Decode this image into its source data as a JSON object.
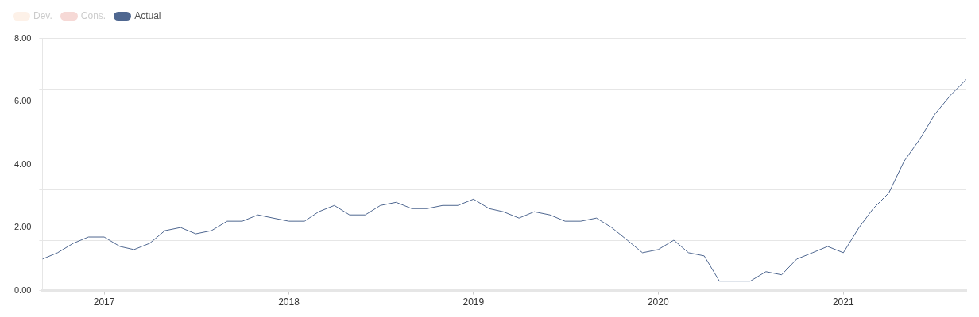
{
  "chart_data": {
    "type": "line",
    "x": [
      "2016-09",
      "2016-10",
      "2016-11",
      "2016-12",
      "2017-01",
      "2017-02",
      "2017-03",
      "2017-04",
      "2017-05",
      "2017-06",
      "2017-07",
      "2017-08",
      "2017-09",
      "2017-10",
      "2017-11",
      "2017-12",
      "2018-01",
      "2018-02",
      "2018-03",
      "2018-04",
      "2018-05",
      "2018-06",
      "2018-07",
      "2018-08",
      "2018-09",
      "2018-10",
      "2018-11",
      "2018-12",
      "2019-01",
      "2019-02",
      "2019-03",
      "2019-04",
      "2019-05",
      "2019-06",
      "2019-07",
      "2019-08",
      "2019-09",
      "2019-10",
      "2019-11",
      "2019-12",
      "2020-01",
      "2020-02",
      "2020-03",
      "2020-04",
      "2020-05",
      "2020-06",
      "2020-07",
      "2020-08",
      "2020-09",
      "2020-10",
      "2020-11",
      "2020-12",
      "2021-01",
      "2021-02",
      "2021-03",
      "2021-04",
      "2021-05",
      "2021-06",
      "2021-07",
      "2021-08",
      "2021-09"
    ],
    "series": [
      {
        "name": "Dev.",
        "color": "#fdf1e8",
        "values": [
          null,
          null,
          null,
          null,
          null,
          null,
          null,
          null,
          null,
          null,
          null,
          null,
          null,
          null,
          null,
          null,
          null,
          null,
          null,
          null,
          null,
          null,
          null,
          null,
          null,
          null,
          null,
          null,
          null,
          null,
          null,
          null,
          null,
          null,
          null,
          null,
          null,
          null,
          null,
          null,
          null,
          null,
          null,
          null,
          null,
          null,
          null,
          null,
          null,
          null,
          null,
          null,
          null,
          null,
          null,
          null,
          null,
          null,
          null,
          null,
          null
        ]
      },
      {
        "name": "Cons.",
        "color": "#f6d9d6",
        "values": [
          null,
          null,
          null,
          null,
          null,
          null,
          null,
          null,
          null,
          null,
          null,
          null,
          null,
          null,
          null,
          null,
          null,
          null,
          null,
          null,
          null,
          null,
          null,
          null,
          null,
          null,
          null,
          null,
          null,
          null,
          null,
          null,
          null,
          null,
          null,
          null,
          null,
          null,
          null,
          null,
          null,
          null,
          null,
          null,
          null,
          null,
          null,
          null,
          null,
          null,
          null,
          null,
          null,
          null,
          null,
          null,
          null,
          null,
          null,
          null,
          null
        ]
      },
      {
        "name": "Actual",
        "color": "#4f6790",
        "values": [
          1.0,
          1.2,
          1.5,
          1.7,
          1.7,
          1.4,
          1.3,
          1.5,
          1.9,
          2.0,
          1.8,
          1.9,
          2.2,
          2.2,
          2.4,
          2.3,
          2.2,
          2.2,
          2.5,
          2.7,
          2.4,
          2.4,
          2.7,
          2.8,
          2.6,
          2.6,
          2.7,
          2.7,
          2.9,
          2.6,
          2.5,
          2.3,
          2.5,
          2.4,
          2.2,
          2.2,
          2.3,
          2.0,
          1.6,
          1.2,
          1.3,
          1.6,
          1.2,
          1.1,
          0.3,
          0.3,
          0.3,
          0.6,
          0.5,
          1.0,
          1.2,
          1.4,
          1.2,
          2.0,
          2.6,
          3.1,
          4.1,
          4.8,
          5.6,
          6.2,
          6.7
        ]
      }
    ],
    "xlim": [
      "2016-09",
      "2021-09"
    ],
    "xticks": [
      "2017",
      "2018",
      "2019",
      "2020",
      "2021"
    ],
    "ylim": [
      0,
      8
    ],
    "yticks": [
      {
        "value": 0,
        "label": "0.00"
      },
      {
        "value": 1.6,
        "label": null
      },
      {
        "value": 2,
        "label": "2.00"
      },
      {
        "value": 3.2,
        "label": null
      },
      {
        "value": 4,
        "label": "4.00"
      },
      {
        "value": 4.8,
        "label": null
      },
      {
        "value": 6,
        "label": "6.00"
      },
      {
        "value": 6.4,
        "label": null
      },
      {
        "value": 8,
        "label": "8.00"
      }
    ],
    "grid": "y",
    "legend": "top left",
    "marker": "none",
    "line_style": "solid"
  }
}
